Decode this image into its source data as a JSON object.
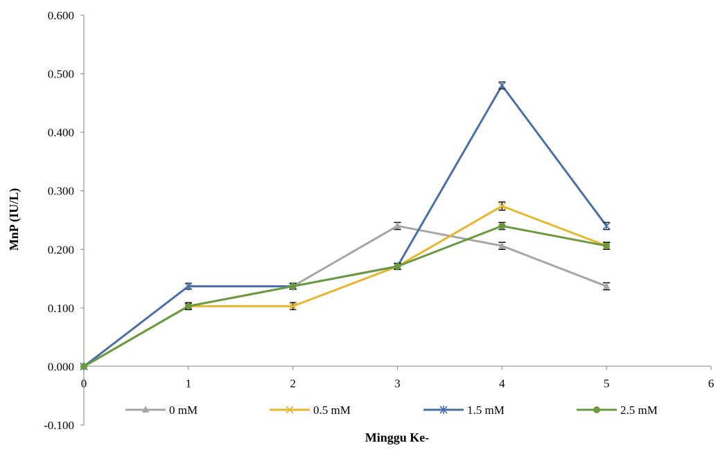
{
  "chart_data": {
    "type": "line",
    "title": "",
    "xlabel": "Minggu Ke-",
    "ylabel": "MnP (IU/L)",
    "xlim": [
      0,
      6
    ],
    "ylim": [
      -0.1,
      0.6
    ],
    "x_ticks": [
      "0",
      "1",
      "2",
      "3",
      "4",
      "5",
      "6"
    ],
    "y_ticks": [
      "-0.100",
      "0.000",
      "0.100",
      "0.200",
      "0.300",
      "0.400",
      "0.500",
      "0.600"
    ],
    "x": [
      0,
      1,
      2,
      3,
      4,
      5
    ],
    "grid": false,
    "legend_position": "bottom",
    "error_bars": true,
    "series": [
      {
        "name": "0 mM",
        "color": "#a6a6a6",
        "marker": "triangle",
        "values": [
          0.0,
          0.103,
          0.137,
          0.24,
          0.206,
          0.137
        ],
        "errors": [
          0.0,
          0.005,
          0.005,
          0.006,
          0.006,
          0.006
        ]
      },
      {
        "name": "0.5 mM",
        "color": "#e6b62e",
        "marker": "x",
        "values": [
          0.0,
          0.103,
          0.103,
          0.171,
          0.274,
          0.206
        ],
        "errors": [
          0.0,
          0.006,
          0.006,
          0.005,
          0.007,
          0.006
        ]
      },
      {
        "name": "1.5 mM",
        "color": "#4a6fa8",
        "marker": "star",
        "values": [
          0.0,
          0.137,
          0.137,
          0.171,
          0.48,
          0.24
        ],
        "errors": [
          0.0,
          0.005,
          0.005,
          0.005,
          0.006,
          0.006
        ]
      },
      {
        "name": "2.5 mM",
        "color": "#6a9a40",
        "marker": "circle",
        "values": [
          0.0,
          0.103,
          0.137,
          0.171,
          0.24,
          0.206
        ],
        "errors": [
          0.0,
          0.005,
          0.005,
          0.005,
          0.006,
          0.006
        ]
      }
    ]
  }
}
